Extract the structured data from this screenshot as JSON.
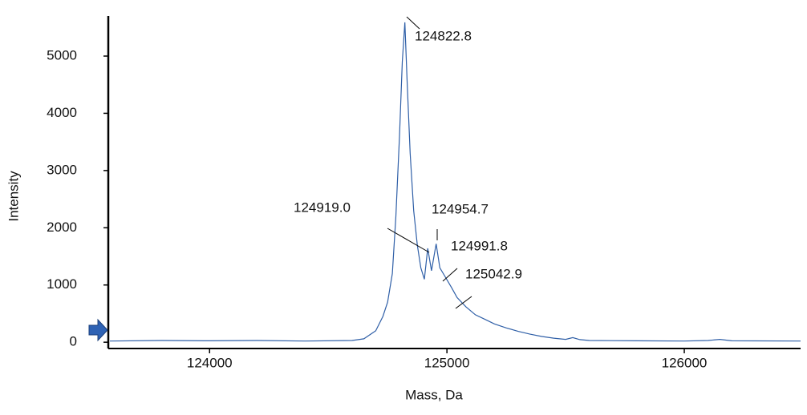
{
  "chart_data": {
    "type": "line",
    "x_label": "Mass, Da",
    "y_label": "Intensity",
    "xlim": [
      123580,
      126490
    ],
    "ylim": [
      -110,
      5700
    ],
    "xticks": [
      124000,
      125000,
      126000
    ],
    "yticks": [
      0,
      1000,
      2000,
      3000,
      4000,
      5000
    ],
    "series": [
      {
        "color": "#2f5fa7",
        "x": [
          123580,
          123800,
          124000,
          124200,
          124400,
          124600,
          124650,
          124700,
          124730,
          124750,
          124770,
          124785,
          124800,
          124812,
          124822.8,
          124832,
          124845,
          124860,
          124875,
          124890,
          124905,
          124919,
          124935,
          124954.7,
          124970,
          124991.8,
          125020,
          125042.9,
          125080,
          125120,
          125160,
          125200,
          125250,
          125300,
          125350,
          125400,
          125450,
          125500,
          125530,
          125560,
          125600,
          125800,
          126000,
          126100,
          126150,
          126200,
          126490
        ],
        "values": [
          20,
          30,
          25,
          30,
          20,
          30,
          60,
          200,
          450,
          700,
          1200,
          2200,
          3600,
          4900,
          5590,
          4600,
          3300,
          2300,
          1700,
          1300,
          1100,
          1640,
          1250,
          1720,
          1300,
          1150,
          950,
          780,
          620,
          480,
          400,
          320,
          250,
          190,
          140,
          100,
          70,
          50,
          80,
          45,
          30,
          25,
          20,
          30,
          50,
          25,
          20
        ]
      }
    ],
    "annotations": [
      "124822.8",
      "124919.0",
      "124954.7",
      "124991.8",
      "125042.9"
    ]
  }
}
